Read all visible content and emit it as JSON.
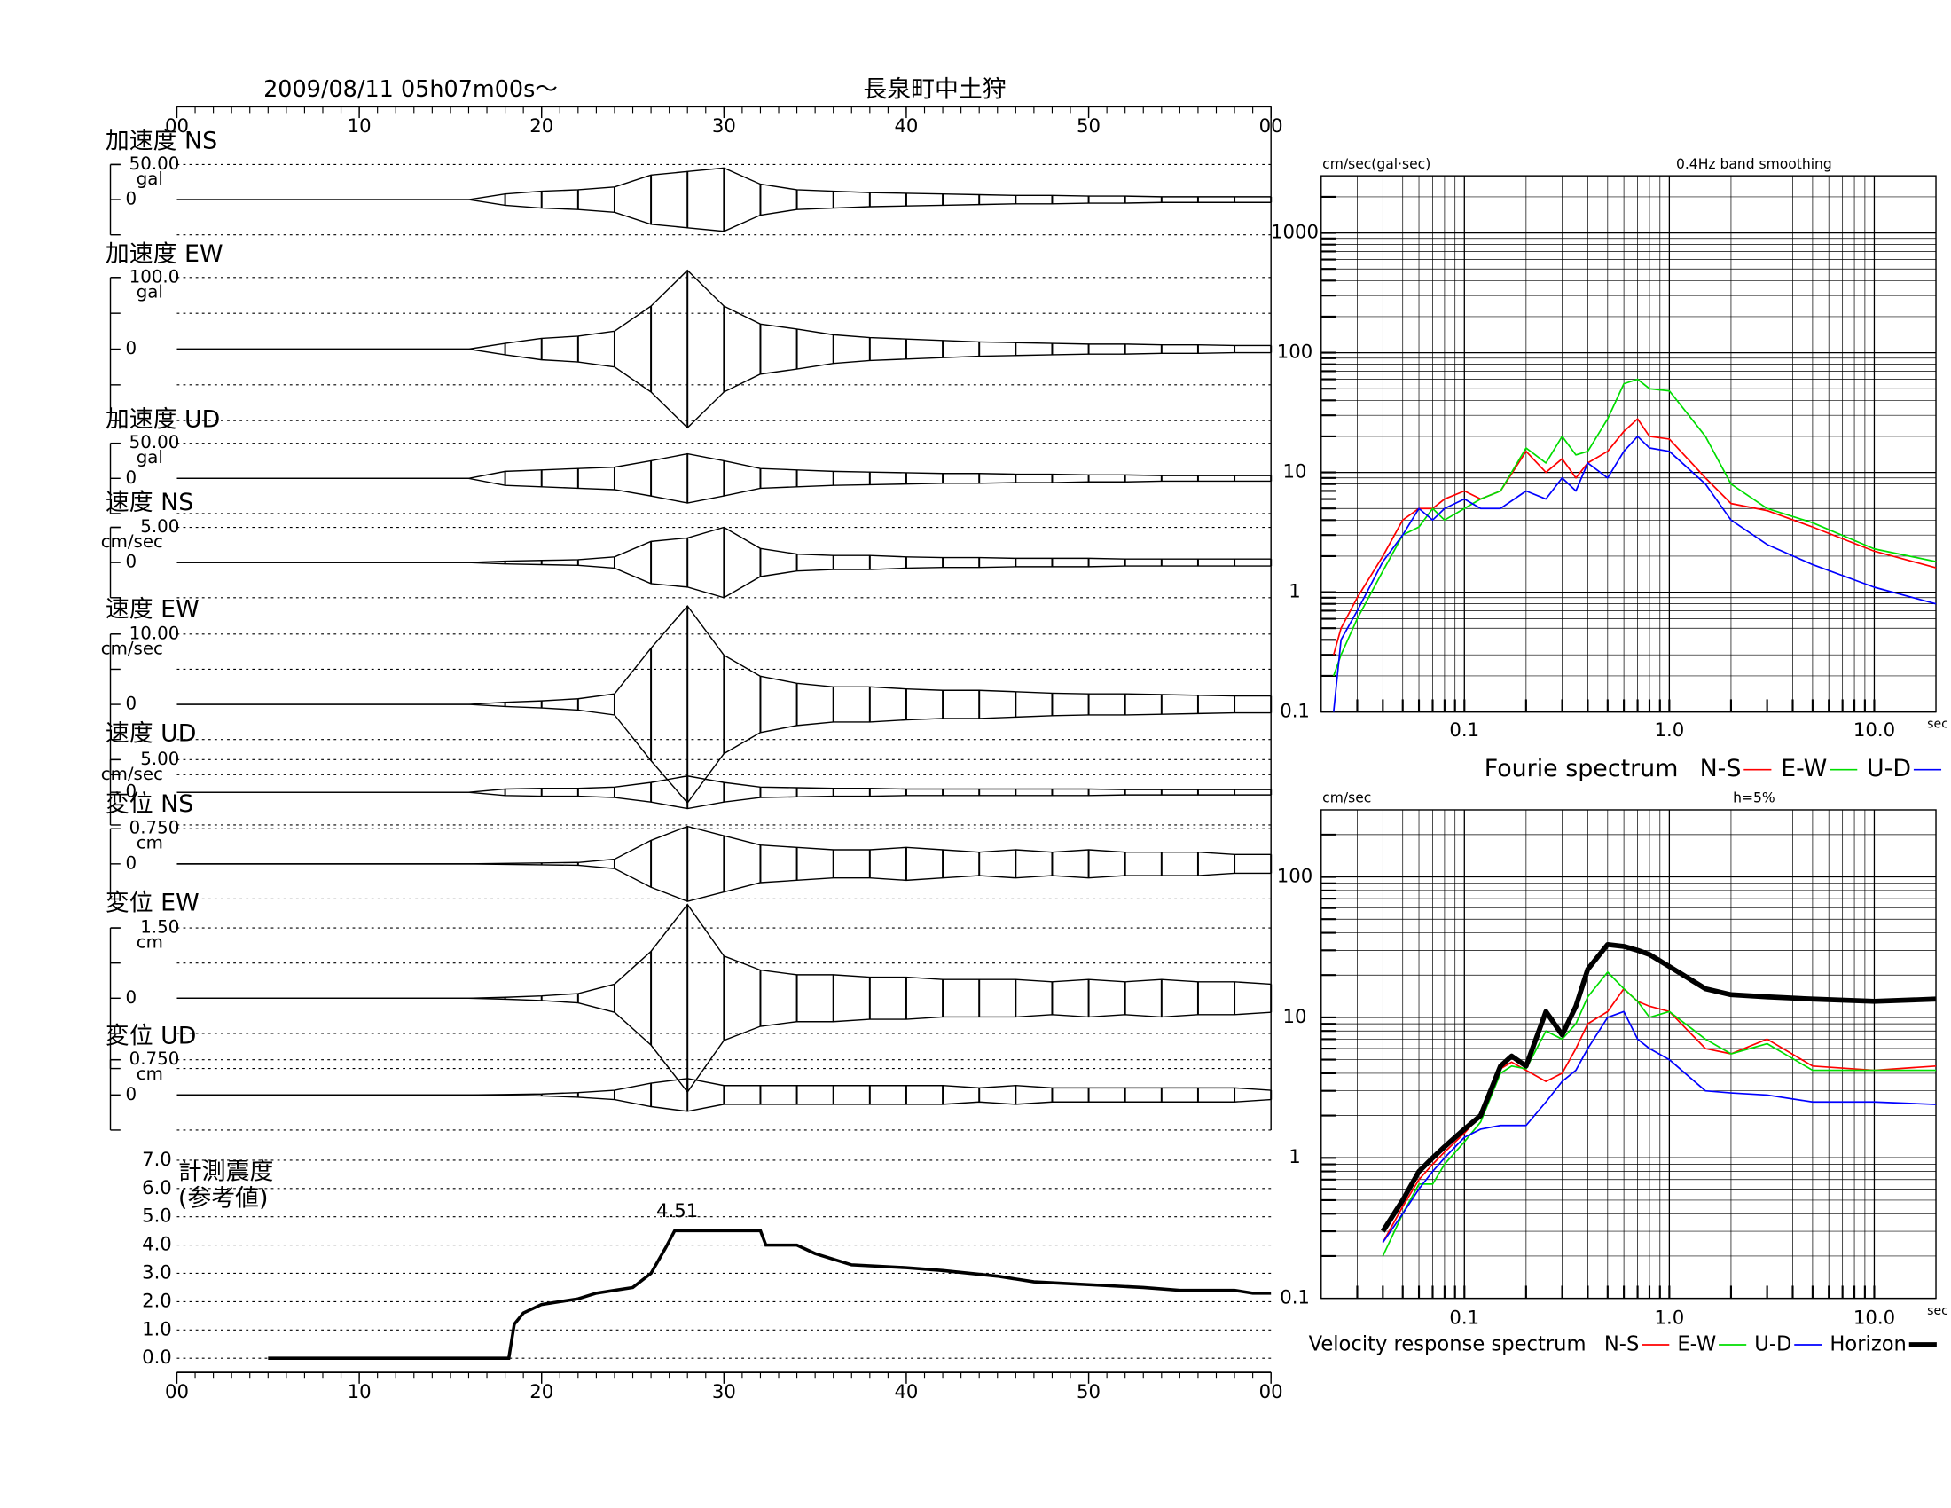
{
  "chart_data": [
    {
      "type": "seismogram",
      "title": "2009/08/11  05h07m00s〜",
      "station": "長泉町中土狩",
      "color": "#000000",
      "xlim": [
        0,
        60
      ],
      "xticks": [
        {
          "value": 0,
          "label": "00"
        },
        10,
        20,
        30,
        40,
        50,
        {
          "value": 60,
          "label": "00"
        }
      ],
      "x": [
        0,
        2,
        4,
        6,
        8,
        10,
        12,
        14,
        16,
        18,
        20,
        22,
        24,
        26,
        28,
        30,
        32,
        34,
        36,
        38,
        40,
        42,
        44,
        46,
        48,
        50,
        52,
        54,
        56,
        58,
        60
      ],
      "traces": [
        {
          "name": "加速度 NS",
          "unit": "gal",
          "ylim": [
            -50,
            50
          ],
          "yticks": [
            {
              "value": 50,
              "label": "50.00"
            },
            0
          ],
          "grid": [
            -50,
            50
          ],
          "values": [
            0,
            0,
            0,
            0,
            0,
            0,
            0,
            0,
            0,
            8,
            12,
            14,
            18,
            35,
            40,
            45,
            22,
            14,
            12,
            10,
            9,
            8,
            7,
            6,
            6,
            5,
            5,
            4,
            4,
            4,
            4
          ]
        },
        {
          "name": "加速度 EW",
          "unit": "gal",
          "ylim": [
            -100,
            100
          ],
          "yticks": [
            {
              "value": 100,
              "label": "100.0"
            },
            0
          ],
          "grid": [
            -100,
            -50,
            50,
            100
          ],
          "values": [
            0,
            0,
            0,
            0,
            0,
            0,
            0,
            0,
            0,
            8,
            15,
            18,
            25,
            60,
            110,
            60,
            35,
            28,
            20,
            16,
            14,
            12,
            10,
            9,
            8,
            7,
            7,
            6,
            6,
            5,
            5
          ]
        },
        {
          "name": "加速度 UD",
          "unit": "gal",
          "ylim": [
            -50,
            50
          ],
          "yticks": [
            {
              "value": 50,
              "label": "50.00"
            },
            0
          ],
          "grid": [
            -50,
            50
          ],
          "values": [
            0,
            0,
            0,
            0,
            0,
            0,
            0,
            0,
            0,
            10,
            12,
            14,
            16,
            25,
            35,
            25,
            14,
            12,
            10,
            9,
            8,
            7,
            7,
            6,
            6,
            5,
            5,
            4,
            4,
            4,
            4
          ]
        },
        {
          "name": "速度 NS",
          "unit": "cm/sec",
          "ylim": [
            -5,
            5
          ],
          "yticks": [
            {
              "value": 5,
              "label": "5.00"
            },
            0
          ],
          "grid": [
            -5,
            5
          ],
          "values": [
            0,
            0,
            0,
            0,
            0,
            0,
            0,
            0,
            0,
            0.2,
            0.3,
            0.4,
            0.8,
            3,
            3.5,
            5,
            2,
            1.2,
            1,
            1,
            0.8,
            0.7,
            0.7,
            0.6,
            0.6,
            0.6,
            0.5,
            0.5,
            0.5,
            0.5,
            0.5
          ]
        },
        {
          "name": "速度 EW",
          "unit": "cm/sec",
          "ylim": [
            -10,
            10
          ],
          "yticks": [
            {
              "value": 10,
              "label": "10.00"
            },
            0
          ],
          "grid": [
            -10,
            -5,
            5,
            10
          ],
          "values": [
            0,
            0,
            0,
            0,
            0,
            0,
            0,
            0,
            0,
            0.3,
            0.5,
            0.8,
            1.5,
            8,
            14,
            7,
            4,
            3,
            2.5,
            2.5,
            2.2,
            2,
            2,
            1.8,
            1.6,
            1.5,
            1.5,
            1.4,
            1.3,
            1.2,
            1.2
          ]
        },
        {
          "name": "速度 UD",
          "unit": "cm/sec",
          "ylim": [
            -5,
            5
          ],
          "yticks": [
            {
              "value": 5,
              "label": "5.00"
            },
            0
          ],
          "grid": [
            -5,
            5
          ],
          "values": [
            0,
            0,
            0,
            0,
            0,
            0,
            0,
            0,
            0,
            0.5,
            0.6,
            0.6,
            0.8,
            1.5,
            2.5,
            1.5,
            0.8,
            0.7,
            0.6,
            0.6,
            0.5,
            0.5,
            0.5,
            0.5,
            0.5,
            0.5,
            0.4,
            0.4,
            0.4,
            0.4,
            0.4
          ]
        },
        {
          "name": "変位 NS",
          "unit": "cm",
          "ylim": [
            -0.75,
            0.75
          ],
          "yticks": [
            {
              "value": 0.75,
              "label": "0.750"
            },
            0
          ],
          "grid": [
            -0.75,
            0.75
          ],
          "values": [
            0,
            0,
            0,
            0,
            0,
            0,
            0,
            0,
            0,
            0.01,
            0.02,
            0.03,
            0.1,
            0.5,
            0.8,
            0.6,
            0.4,
            0.35,
            0.3,
            0.3,
            0.35,
            0.3,
            0.25,
            0.3,
            0.25,
            0.3,
            0.25,
            0.25,
            0.25,
            0.2,
            0.2
          ]
        },
        {
          "name": "変位 EW",
          "unit": "cm",
          "ylim": [
            -1.5,
            1.5
          ],
          "yticks": [
            {
              "value": 1.5,
              "label": "1.50"
            },
            0
          ],
          "grid": [
            -1.5,
            -0.75,
            0.75,
            1.5
          ],
          "values": [
            0,
            0,
            0,
            0,
            0,
            0,
            0,
            0,
            0,
            0.02,
            0.05,
            0.1,
            0.3,
            1.0,
            2.0,
            0.9,
            0.6,
            0.5,
            0.5,
            0.45,
            0.45,
            0.4,
            0.4,
            0.4,
            0.35,
            0.4,
            0.35,
            0.4,
            0.35,
            0.35,
            0.3
          ]
        },
        {
          "name": "変位 UD",
          "unit": "cm",
          "ylim": [
            -0.75,
            0.75
          ],
          "yticks": [
            {
              "value": 0.75,
              "label": "0.750"
            },
            0
          ],
          "grid": [
            -0.75,
            0.75
          ],
          "values": [
            0,
            0,
            0,
            0,
            0,
            0,
            0,
            0,
            0,
            0.01,
            0.02,
            0.05,
            0.1,
            0.25,
            0.35,
            0.2,
            0.2,
            0.2,
            0.2,
            0.2,
            0.2,
            0.2,
            0.15,
            0.2,
            0.15,
            0.15,
            0.15,
            0.15,
            0.15,
            0.15,
            0.1
          ]
        }
      ]
    },
    {
      "type": "intensity",
      "title": "計測震度",
      "subtitle": "(参考値)",
      "color": "#000000",
      "xlim": [
        0,
        60
      ],
      "xticks": [
        {
          "value": 0,
          "label": "00"
        },
        10,
        20,
        30,
        40,
        50,
        {
          "value": 60,
          "label": "00"
        }
      ],
      "ylim": [
        -0.5,
        7
      ],
      "yticks": [
        {
          "value": 0,
          "label": "0.0"
        },
        {
          "value": 1,
          "label": "1.0"
        },
        {
          "value": 2,
          "label": "2.0"
        },
        {
          "value": 3,
          "label": "3.0"
        },
        {
          "value": 4,
          "label": "4.0"
        },
        {
          "value": 5,
          "label": "5.0"
        },
        {
          "value": 6,
          "label": "6.0"
        },
        {
          "value": 7,
          "label": "7.0"
        }
      ],
      "x": [
        5,
        18.2,
        18.5,
        19,
        20,
        21,
        22,
        23,
        24,
        25,
        26,
        26.8,
        27.3,
        32,
        32.3,
        34,
        35,
        36,
        37,
        40,
        42,
        45,
        47,
        50,
        53,
        55,
        58,
        59,
        60
      ],
      "values": [
        0,
        0,
        1.2,
        1.6,
        1.9,
        2.0,
        2.1,
        2.3,
        2.4,
        2.5,
        3.0,
        3.9,
        4.51,
        4.51,
        4.0,
        4.0,
        3.7,
        3.5,
        3.3,
        3.2,
        3.1,
        2.9,
        2.7,
        2.6,
        2.5,
        2.4,
        2.4,
        2.3,
        2.3
      ],
      "peak_index": 12
    },
    {
      "type": "line",
      "title": "Fourie spectrum",
      "ylabel": "cm/sec(gal·sec)",
      "note": "0.4Hz band smoothing",
      "xlabel": "sec",
      "xscale": "log",
      "yscale": "log",
      "grid": true,
      "xlim": [
        0.02,
        20
      ],
      "xticks": [
        0.1,
        {
          "value": 1,
          "label": "1.0"
        },
        {
          "value": 10,
          "label": "10.0"
        }
      ],
      "ylim": [
        0.1,
        3000
      ],
      "yticks": [
        0.1,
        1,
        10,
        100,
        1000
      ],
      "x": [
        0.023,
        0.025,
        0.03,
        0.04,
        0.05,
        0.06,
        0.07,
        0.08,
        0.1,
        0.12,
        0.15,
        0.2,
        0.25,
        0.3,
        0.35,
        0.4,
        0.5,
        0.6,
        0.7,
        0.8,
        1.0,
        1.5,
        2,
        3,
        5,
        10,
        20
      ],
      "series": [
        {
          "name": "N-S",
          "color": "#ff0000",
          "line_width": 1.2,
          "values": [
            0.3,
            0.5,
            0.9,
            2,
            4,
            5,
            5,
            6,
            7,
            6,
            7,
            15,
            10,
            13,
            9,
            12,
            15,
            22,
            28,
            20,
            19,
            9,
            5.5,
            4.8,
            3.5,
            2.2,
            1.6
          ]
        },
        {
          "name": "E-W",
          "color": "#00dd00",
          "line_width": 1.2,
          "values": [
            0.2,
            0.3,
            0.6,
            1.5,
            3,
            3.5,
            5,
            4,
            5,
            6,
            7,
            16,
            12,
            20,
            14,
            15,
            28,
            55,
            60,
            50,
            48,
            20,
            8,
            5,
            3.8,
            2.3,
            1.8
          ]
        },
        {
          "name": "U-D",
          "color": "#0000ff",
          "line_width": 1.2,
          "values": [
            0.1,
            0.4,
            0.7,
            1.8,
            3,
            5,
            4,
            5,
            6,
            5,
            5,
            7,
            6,
            9,
            7,
            12,
            9,
            15,
            20,
            16,
            15,
            8,
            4,
            2.5,
            1.7,
            1.1,
            0.8
          ]
        }
      ]
    },
    {
      "type": "line",
      "title": "Velocity response spectrum",
      "ylabel": "cm/sec",
      "note": "h=5%",
      "xlabel": "sec",
      "xscale": "log",
      "yscale": "log",
      "grid": true,
      "xlim": [
        0.02,
        20
      ],
      "xticks": [
        0.1,
        {
          "value": 1,
          "label": "1.0"
        },
        {
          "value": 10,
          "label": "10.0"
        }
      ],
      "ylim": [
        0.1,
        300
      ],
      "yticks": [
        0.1,
        1,
        10,
        100
      ],
      "x": [
        0.04,
        0.05,
        0.06,
        0.07,
        0.08,
        0.1,
        0.12,
        0.15,
        0.17,
        0.2,
        0.25,
        0.3,
        0.35,
        0.4,
        0.5,
        0.6,
        0.7,
        0.8,
        1.0,
        1.5,
        2,
        3,
        5,
        10,
        20
      ],
      "series": [
        {
          "name": "N-S",
          "color": "#ff0000",
          "line_width": 1.2,
          "values": [
            0.25,
            0.45,
            0.7,
            0.9,
            1.1,
            1.5,
            2.0,
            4.3,
            4.8,
            4.2,
            3.5,
            4,
            6,
            9,
            11,
            16,
            13,
            12,
            11,
            6,
            5.5,
            7,
            4.5,
            4.2,
            4.5
          ]
        },
        {
          "name": "E-W",
          "color": "#00dd00",
          "line_width": 1.2,
          "values": [
            0.2,
            0.4,
            0.65,
            0.65,
            0.9,
            1.3,
            1.8,
            4.0,
            4.5,
            4.3,
            8,
            7,
            9,
            14,
            21,
            16,
            13,
            10,
            11,
            7,
            5.5,
            6.5,
            4.2,
            4.2,
            4.2
          ]
        },
        {
          "name": "U-D",
          "color": "#0000ff",
          "line_width": 1.2,
          "values": [
            0.25,
            0.4,
            0.6,
            0.8,
            1.0,
            1.4,
            1.6,
            1.7,
            1.7,
            1.7,
            2.5,
            3.5,
            4.2,
            6,
            10,
            11,
            7,
            6,
            5,
            3,
            2.9,
            2.8,
            2.5,
            2.5,
            2.4
          ]
        },
        {
          "name": "Horizon",
          "color": "#000000",
          "line_width": 4,
          "values": [
            0.3,
            0.5,
            0.8,
            1.0,
            1.2,
            1.6,
            2.0,
            4.5,
            5.3,
            4.5,
            11,
            7.5,
            12,
            22,
            33,
            32,
            30,
            28,
            23,
            16,
            14.5,
            14,
            13.5,
            13,
            13.5
          ]
        }
      ]
    }
  ]
}
